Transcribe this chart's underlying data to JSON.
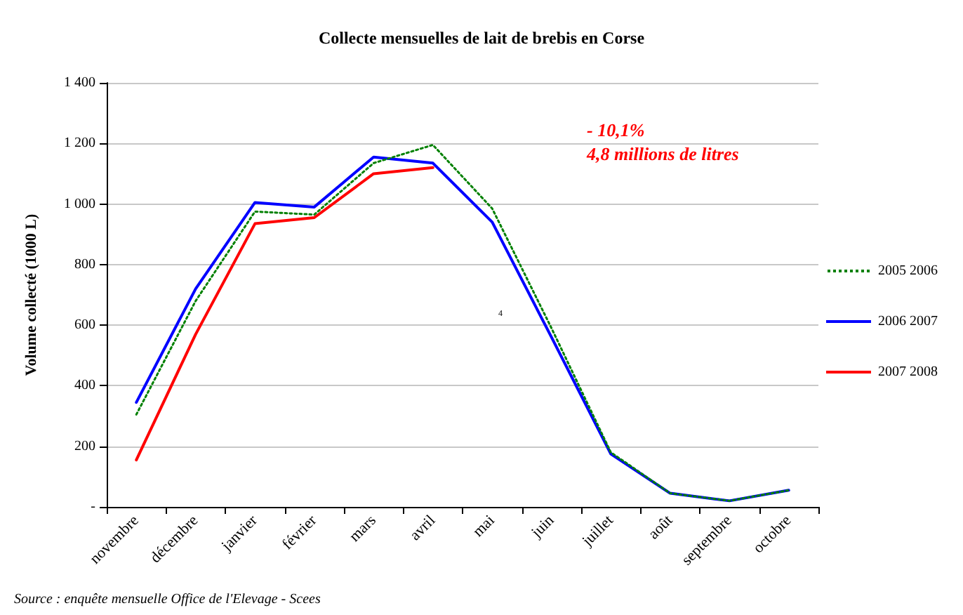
{
  "chart_data": {
    "type": "line",
    "title": "Collecte mensuelles de lait de brebis en Corse",
    "ylabel": "Volume collecté (1000 L)",
    "categories": [
      "novembre",
      "décembre",
      "janvier",
      "février",
      "mars",
      "avril",
      "mai",
      "juin",
      "juillet",
      "août",
      "septembre",
      "octobre"
    ],
    "series": [
      {
        "name": "2005 2006",
        "color": "#008000",
        "line_style": "dotted",
        "values": [
          305,
          680,
          975,
          965,
          1135,
          1195,
          985,
          590,
          180,
          45,
          20,
          55
        ]
      },
      {
        "name": "2006 2007",
        "color": "#0000ff",
        "line_style": "solid",
        "values": [
          345,
          720,
          1005,
          990,
          1155,
          1135,
          940,
          560,
          175,
          45,
          20,
          55
        ]
      },
      {
        "name": "2007 2008",
        "color": "#ff0000",
        "line_style": "solid",
        "values": [
          155,
          570,
          935,
          955,
          1100,
          1120,
          null,
          null,
          null,
          null,
          null,
          null
        ]
      }
    ],
    "ylim": [
      0,
      1400
    ],
    "yticks": [
      {
        "value": 0,
        "label": "-"
      },
      200,
      400,
      600,
      800,
      {
        "value": 1000,
        "label": "1 000"
      },
      {
        "value": 1200,
        "label": "1 200"
      },
      {
        "value": 1400,
        "label": "1 400"
      }
    ],
    "grid": "y",
    "legend": "right",
    "marker": "none",
    "annotations": [
      "- 10,1%",
      "4,8 millions de litres",
      "4",
      "Source : enquête mensuelle Office de l'Elevage - Scees"
    ]
  }
}
